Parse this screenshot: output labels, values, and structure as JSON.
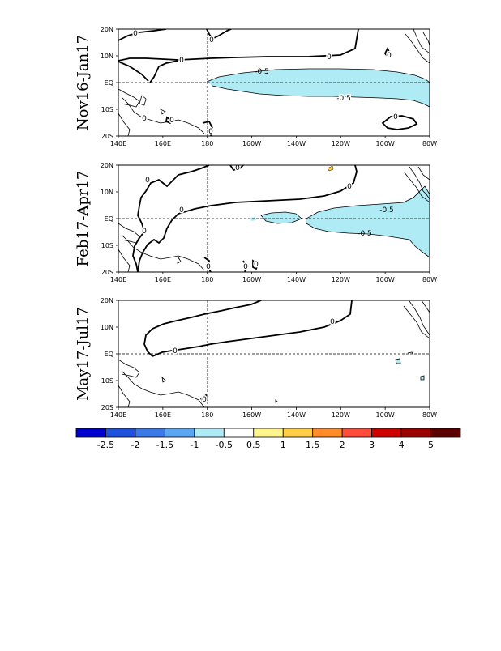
{
  "panels": [
    {
      "label": "Nov16-Jan17",
      "contour_labels": [
        "0",
        "0",
        "0",
        "0",
        "0",
        "0",
        "0",
        "0",
        "0",
        "-0.5",
        "-0.5"
      ]
    },
    {
      "label": "Feb17-Apr17",
      "contour_labels": [
        "0",
        "0",
        "0",
        "0",
        "0",
        "0",
        "0",
        "0",
        "-0.5",
        "-0.5"
      ]
    },
    {
      "label": "May17-Jul17",
      "contour_labels": [
        "0",
        "0",
        "0"
      ]
    }
  ],
  "lat_ticks": [
    "20N",
    "10N",
    "EQ",
    "10S",
    "20S"
  ],
  "lon_ticks": [
    "140E",
    "160E",
    "180",
    "160W",
    "140W",
    "120W",
    "100W",
    "80W"
  ],
  "colorbar": {
    "labels": [
      "-2.5",
      "-2",
      "-1.5",
      "-1",
      "-0.5",
      "0.5",
      "1",
      "1.5",
      "2",
      "3",
      "4",
      "5"
    ],
    "colors": [
      "#0000cd",
      "#1e50dc",
      "#3c78e6",
      "#5ca5f0",
      "#afebf5",
      "#ffffff",
      "#fff58c",
      "#ffcd46",
      "#ff8c28",
      "#ff4b3c",
      "#cd0000",
      "#9b0000",
      "#5a0000"
    ]
  },
  "colors": {
    "negative_fill": "#afebf5",
    "positive_fill": "#ffcd46"
  }
}
